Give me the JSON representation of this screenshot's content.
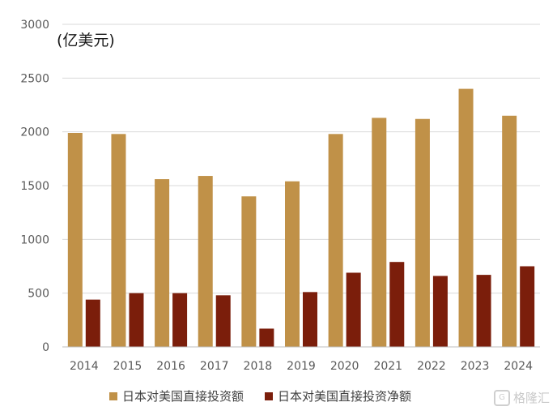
{
  "chart_data": {
    "type": "bar",
    "unit_label": "(亿美元)",
    "categories": [
      "2014",
      "2015",
      "2016",
      "2017",
      "2018",
      "2019",
      "2020",
      "2021",
      "2022",
      "2023",
      "2024"
    ],
    "series": [
      {
        "name": "日本对美国直接投资额",
        "color": "#C09148",
        "values": [
          1990,
          1980,
          1560,
          1590,
          1400,
          1540,
          1980,
          2130,
          2120,
          2400,
          2150
        ]
      },
      {
        "name": "日本对美国直接投资净额",
        "color": "#7B1E0B",
        "values": [
          440,
          500,
          500,
          480,
          170,
          510,
          690,
          790,
          660,
          670,
          750
        ]
      }
    ],
    "ylim": [
      0,
      3000
    ],
    "yticks": [
      "0",
      "500",
      "1000",
      "1500",
      "2000",
      "2500",
      "3000"
    ],
    "grid": true,
    "legend_position": "bottom"
  },
  "watermark": {
    "text": "格隆汇",
    "logo_glyph": "G"
  }
}
